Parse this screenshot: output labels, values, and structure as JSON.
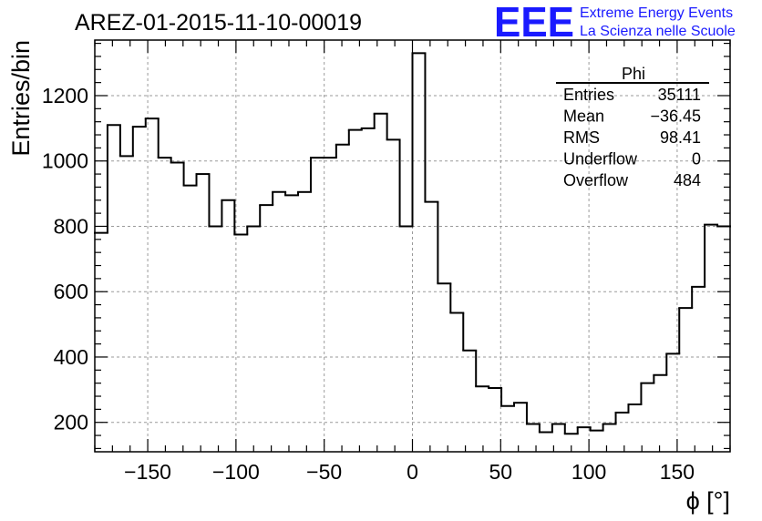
{
  "title": "AREZ-01-2015-11-10-00019",
  "logo": {
    "text": "EEE",
    "line1": "Extreme Energy Events",
    "line2": "La Scienza nelle Scuole",
    "color": "#1a1aff"
  },
  "stats": {
    "name": "Phi",
    "rows": [
      {
        "label": "Entries",
        "value": "35111"
      },
      {
        "label": "Mean",
        "value": "−36.45"
      },
      {
        "label": "RMS",
        "value": "98.41"
      },
      {
        "label": "Underflow",
        "value": "0"
      },
      {
        "label": "Overflow",
        "value": "484"
      }
    ]
  },
  "chart_data": {
    "type": "histogram-step",
    "title": "AREZ-01-2015-11-10-00019",
    "xlabel": "ϕ [°]",
    "ylabel": "Entries/bin",
    "xlim": [
      -180,
      180
    ],
    "ylim": [
      110,
      1370
    ],
    "grid": true,
    "bin_width": 7.2,
    "xticks": [
      -150,
      -100,
      -50,
      0,
      50,
      100,
      150
    ],
    "xtick_labels": [
      "−150",
      "−100",
      "−50",
      "0",
      "50",
      "100",
      "150"
    ],
    "yticks": [
      200,
      400,
      600,
      800,
      1000,
      1200
    ],
    "ytick_labels": [
      "200",
      "400",
      "600",
      "800",
      "1000",
      "1200"
    ],
    "bin_low_edges": [
      -180,
      -172.8,
      -165.6,
      -158.4,
      -151.2,
      -144,
      -136.8,
      -129.6,
      -122.4,
      -115.2,
      -108,
      -100.8,
      -93.6,
      -86.4,
      -79.2,
      -72,
      -64.8,
      -57.6,
      -50.4,
      -43.2,
      -36,
      -28.8,
      -21.6,
      -14.4,
      -7.2,
      0,
      7.2,
      14.4,
      21.6,
      28.8,
      36,
      43.2,
      50.4,
      57.6,
      64.8,
      72,
      79.2,
      86.4,
      93.6,
      100.8,
      108,
      115.2,
      122.4,
      129.6,
      136.8,
      144,
      151.2,
      158.4,
      165.6,
      172.8
    ],
    "values": [
      780,
      1110,
      1015,
      1105,
      1130,
      1010,
      995,
      925,
      960,
      800,
      880,
      775,
      800,
      865,
      905,
      895,
      905,
      1010,
      1010,
      1050,
      1095,
      1100,
      1145,
      1065,
      800,
      1330,
      875,
      625,
      535,
      420,
      310,
      305,
      250,
      260,
      195,
      170,
      195,
      165,
      185,
      175,
      195,
      230,
      255,
      320,
      345,
      410,
      550,
      615,
      805,
      800
    ]
  }
}
